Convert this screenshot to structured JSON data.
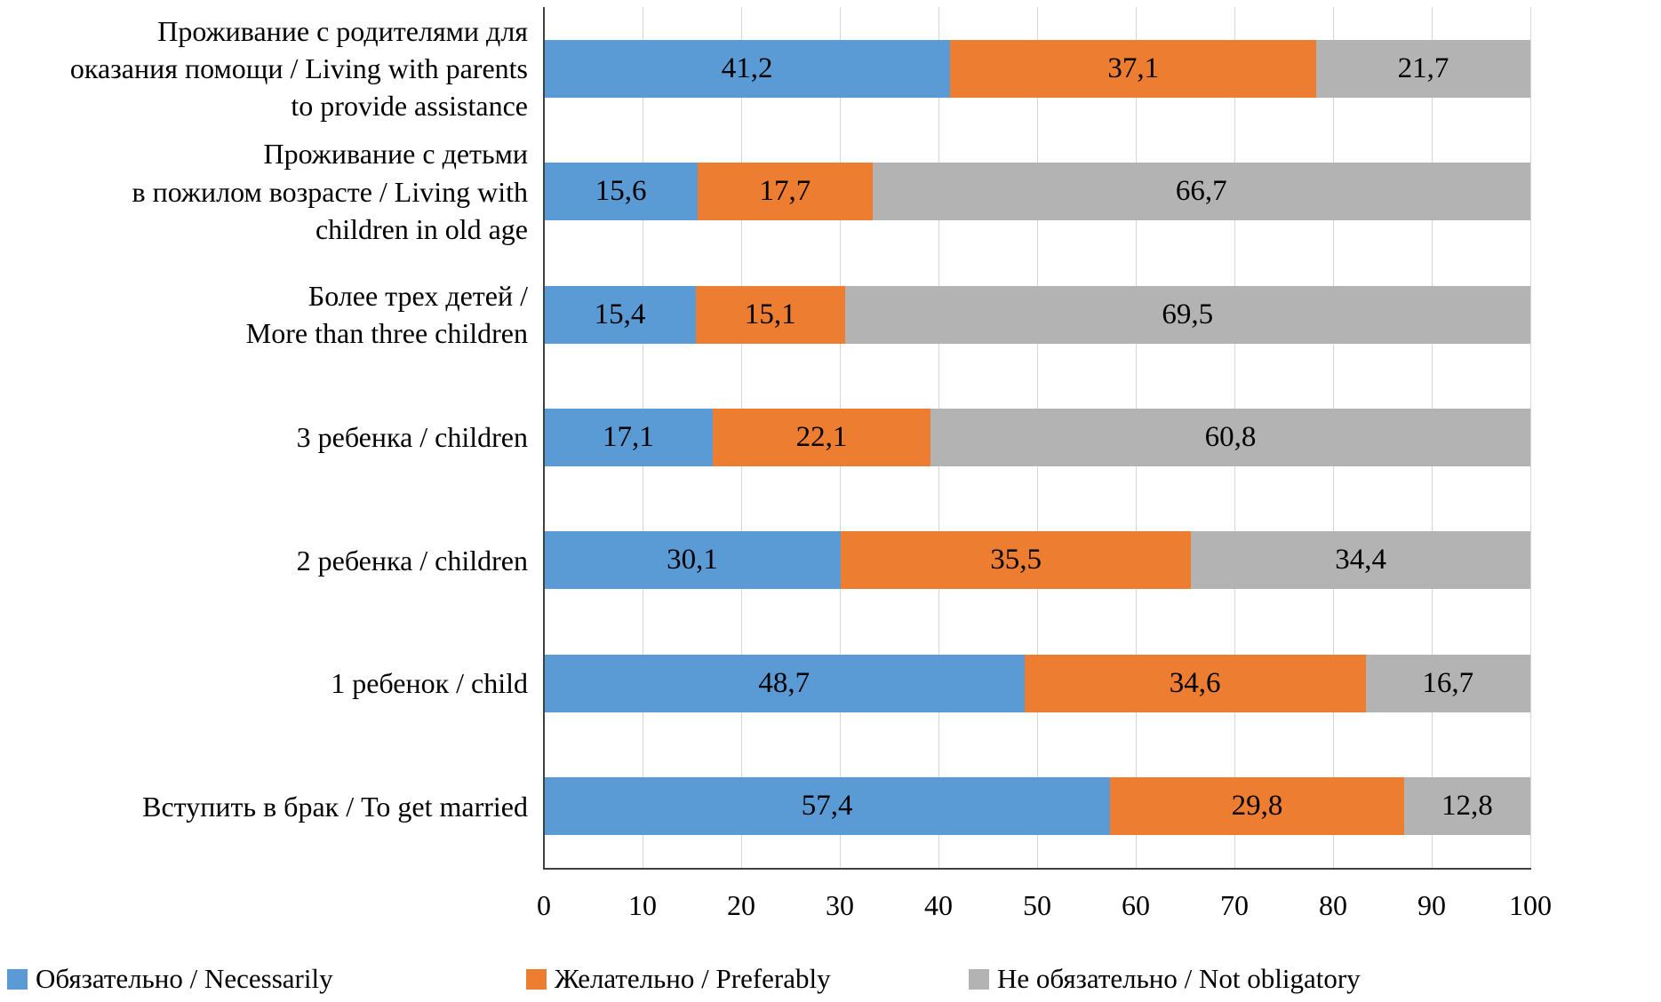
{
  "chart_data": {
    "type": "bar",
    "orientation": "horizontal",
    "stacked": true,
    "title": "",
    "xlabel": "",
    "ylabel": "",
    "xlim": [
      0,
      100
    ],
    "xticks": [
      0,
      10,
      20,
      30,
      40,
      50,
      60,
      70,
      80,
      90,
      100
    ],
    "grid": true,
    "legend_position": "bottom",
    "decimal_separator": ",",
    "categories": [
      {
        "lines": [
          "Проживание с родителями для",
          "оказания помощи / Living with parents",
          "to provide assistance"
        ]
      },
      {
        "lines": [
          "Проживание с детьми",
          "в пожилом возрасте / Living with",
          "children in old age"
        ]
      },
      {
        "lines": [
          "Более трех детей /",
          "More than three children"
        ]
      },
      {
        "lines": [
          "3 ребенка / children"
        ]
      },
      {
        "lines": [
          "2 ребенка / children"
        ]
      },
      {
        "lines": [
          "1 ребенок / child"
        ]
      },
      {
        "lines": [
          "Вступить в брак / To get married"
        ]
      }
    ],
    "series": [
      {
        "name": "Обязательно / Necessarily",
        "color": "#5b9bd5",
        "values": [
          41.2,
          15.6,
          15.4,
          17.1,
          30.1,
          48.7,
          57.4
        ]
      },
      {
        "name": "Желательно / Preferably",
        "color": "#ed7d31",
        "values": [
          37.1,
          17.7,
          15.1,
          22.1,
          35.5,
          34.6,
          29.8
        ]
      },
      {
        "name": "Не обязательно / Not obligatory",
        "color": "#b3b3b3",
        "values": [
          21.7,
          66.7,
          69.5,
          60.8,
          34.4,
          16.7,
          12.8
        ]
      }
    ]
  },
  "colors": {
    "gridline": "#d6d6d6",
    "axis": "#404040",
    "text": "#000000",
    "background": "#ffffff"
  }
}
